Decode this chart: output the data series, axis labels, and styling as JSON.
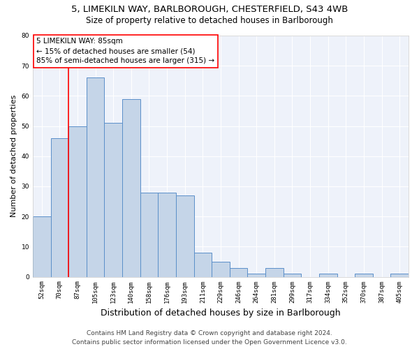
{
  "title_line1": "5, LIMEKILN WAY, BARLBOROUGH, CHESTERFIELD, S43 4WB",
  "title_line2": "Size of property relative to detached houses in Barlborough",
  "xlabel": "Distribution of detached houses by size in Barlborough",
  "ylabel": "Number of detached properties",
  "categories": [
    "52sqm",
    "70sqm",
    "87sqm",
    "105sqm",
    "123sqm",
    "140sqm",
    "158sqm",
    "176sqm",
    "193sqm",
    "211sqm",
    "229sqm",
    "246sqm",
    "264sqm",
    "281sqm",
    "299sqm",
    "317sqm",
    "334sqm",
    "352sqm",
    "370sqm",
    "387sqm",
    "405sqm"
  ],
  "values": [
    20,
    46,
    50,
    66,
    51,
    59,
    28,
    28,
    27,
    8,
    5,
    3,
    1,
    3,
    1,
    0,
    1,
    0,
    1,
    0,
    1
  ],
  "bar_color": "#c5d5e8",
  "bar_edge_color": "#5b8fc9",
  "bar_edge_width": 0.7,
  "vline_color": "red",
  "vline_x_index": 2,
  "annotation_text": "5 LIMEKILN WAY: 85sqm\n← 15% of detached houses are smaller (54)\n85% of semi-detached houses are larger (315) →",
  "annotation_box_facecolor": "white",
  "annotation_box_edgecolor": "red",
  "ylim": [
    0,
    80
  ],
  "yticks": [
    0,
    10,
    20,
    30,
    40,
    50,
    60,
    70,
    80
  ],
  "bg_color": "#eef2fa",
  "grid_color": "white",
  "footer_line1": "Contains HM Land Registry data © Crown copyright and database right 2024.",
  "footer_line2": "Contains public sector information licensed under the Open Government Licence v3.0.",
  "title_fontsize": 9.5,
  "subtitle_fontsize": 8.5,
  "ylabel_fontsize": 8,
  "xlabel_fontsize": 9,
  "tick_fontsize": 6.5,
  "annot_fontsize": 7.5,
  "footer_fontsize": 6.5
}
